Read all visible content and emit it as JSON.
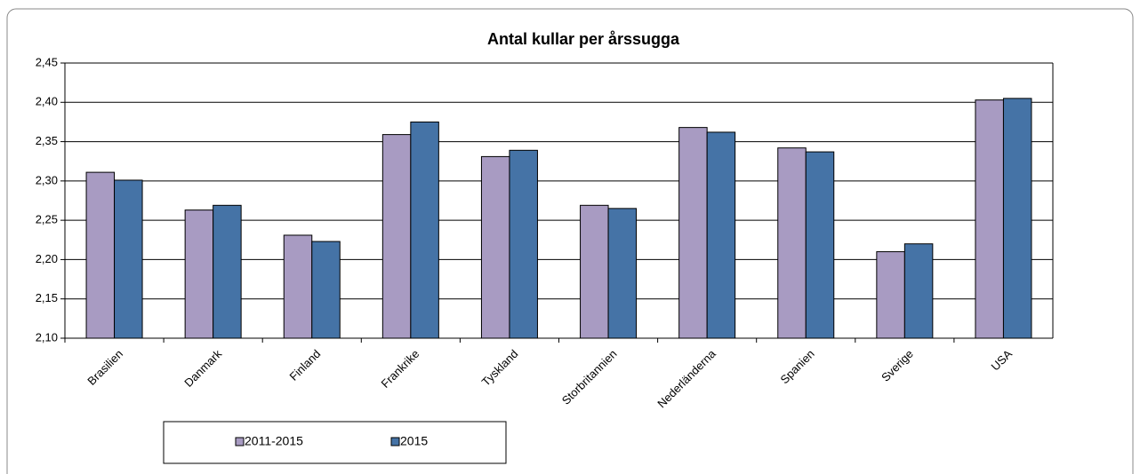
{
  "chart_data": {
    "type": "bar",
    "title": "Antal kullar per årssugga",
    "categories": [
      "Brasilien",
      "Danmark",
      "Finland",
      "Frankrike",
      "Tyskland",
      "Storbritannien",
      "Nederländerna",
      "Spanien",
      "Sverige",
      "USA"
    ],
    "series": [
      {
        "name": "2011-2015",
        "color": "#a89bc2",
        "values": [
          2.311,
          2.263,
          2.231,
          2.359,
          2.331,
          2.269,
          2.368,
          2.342,
          2.21,
          2.403
        ]
      },
      {
        "name": "2015",
        "color": "#4573a6",
        "values": [
          2.301,
          2.269,
          2.223,
          2.375,
          2.339,
          2.265,
          2.362,
          2.337,
          2.22,
          2.405
        ]
      }
    ],
    "ylim": [
      2.1,
      2.45
    ],
    "yticks": [
      {
        "value": 2.1,
        "label": "2,10"
      },
      {
        "value": 2.15,
        "label": "2,15"
      },
      {
        "value": 2.2,
        "label": "2,20"
      },
      {
        "value": 2.25,
        "label": "2,25"
      },
      {
        "value": 2.3,
        "label": "2,30"
      },
      {
        "value": 2.35,
        "label": "2,35"
      },
      {
        "value": 2.4,
        "label": "2,40"
      },
      {
        "value": 2.45,
        "label": "2,45"
      }
    ],
    "grid": true,
    "legend": "bottom"
  }
}
